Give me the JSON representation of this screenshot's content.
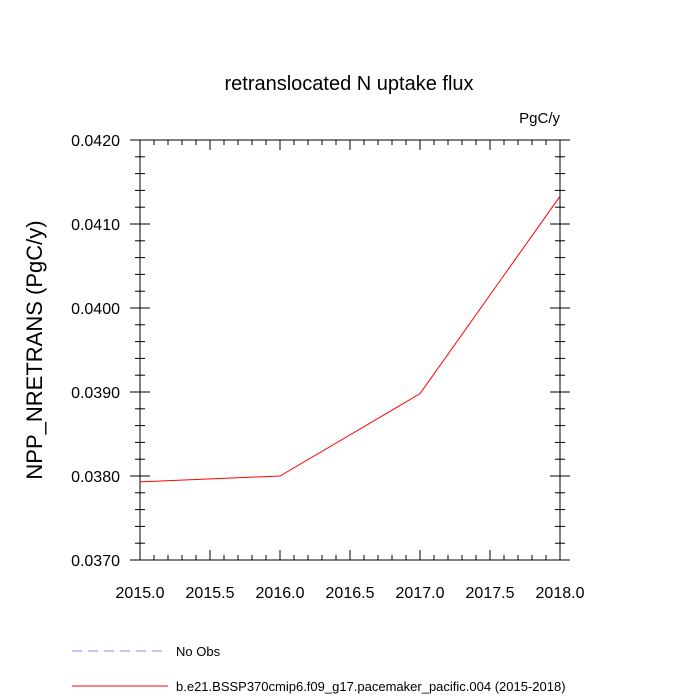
{
  "chart_data": {
    "type": "line",
    "title": "retranslocated N uptake flux",
    "units_label": "PgC/y",
    "xlabel": "",
    "ylabel": "NPP_NRETRANS  (PgC/y)",
    "xlim": [
      2015.0,
      2018.0
    ],
    "ylim": [
      0.037,
      0.042
    ],
    "x_ticks": [
      2015.0,
      2015.5,
      2016.0,
      2016.5,
      2017.0,
      2017.5,
      2018.0
    ],
    "x_tick_labels": [
      "2015.0",
      "2015.5",
      "2016.0",
      "2016.5",
      "2017.0",
      "2017.5",
      "2018.0"
    ],
    "y_ticks": [
      0.037,
      0.038,
      0.039,
      0.04,
      0.041,
      0.042
    ],
    "y_tick_labels": [
      "0.0370",
      "0.0380",
      "0.0390",
      "0.0400",
      "0.0410",
      "0.0420"
    ],
    "grid": false,
    "legend_position": "bottom",
    "series": [
      {
        "name": "b.e21.BSSP370cmip6.f09_g17.pacemaker_pacific.004 (2015-2018)",
        "color": "#ff0000",
        "dash": "solid",
        "x": [
          2015.0,
          2016.0,
          2017.0,
          2018.0
        ],
        "values": [
          0.03793,
          0.038,
          0.03898,
          0.04133
        ]
      }
    ],
    "legend": [
      {
        "label": "No Obs",
        "color": "#8c8cff",
        "dash": "dashed"
      },
      {
        "label": "b.e21.BSSP370cmip6.f09_g17.pacemaker_pacific.004 (2015-2018)",
        "color": "#ff0000",
        "dash": "solid"
      }
    ]
  }
}
